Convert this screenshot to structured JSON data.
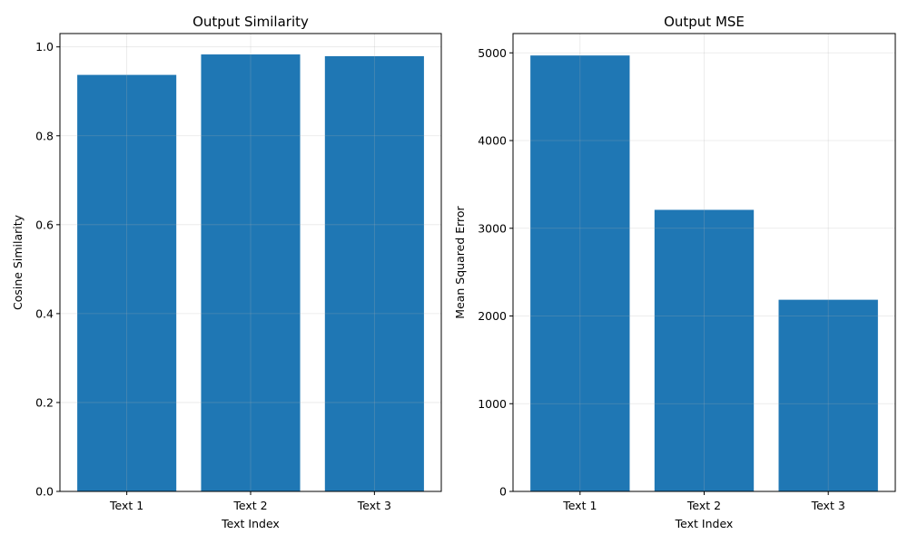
{
  "chart_data": [
    {
      "type": "bar",
      "title": "Output Similarity",
      "xlabel": "Text Index",
      "ylabel": "Cosine Similarity",
      "categories": [
        "Text 1",
        "Text 2",
        "Text 3"
      ],
      "values": [
        0.937,
        0.983,
        0.979
      ],
      "ylim": [
        0,
        1.03
      ],
      "yticks": [
        0.0,
        0.2,
        0.4,
        0.6,
        0.8,
        1.0
      ],
      "ytick_labels": [
        "0.0",
        "0.2",
        "0.4",
        "0.6",
        "0.8",
        "1.0"
      ],
      "grid": true,
      "bar_color": "#1f77b4"
    },
    {
      "type": "bar",
      "title": "Output MSE",
      "xlabel": "Text Index",
      "ylabel": "Mean Squared Error",
      "categories": [
        "Text 1",
        "Text 2",
        "Text 3"
      ],
      "values": [
        4970,
        3210,
        2185
      ],
      "ylim": [
        0,
        5220
      ],
      "yticks": [
        0,
        1000,
        2000,
        3000,
        4000,
        5000
      ],
      "ytick_labels": [
        "0",
        "1000",
        "2000",
        "3000",
        "4000",
        "5000"
      ],
      "grid": true,
      "bar_color": "#1f77b4"
    }
  ]
}
